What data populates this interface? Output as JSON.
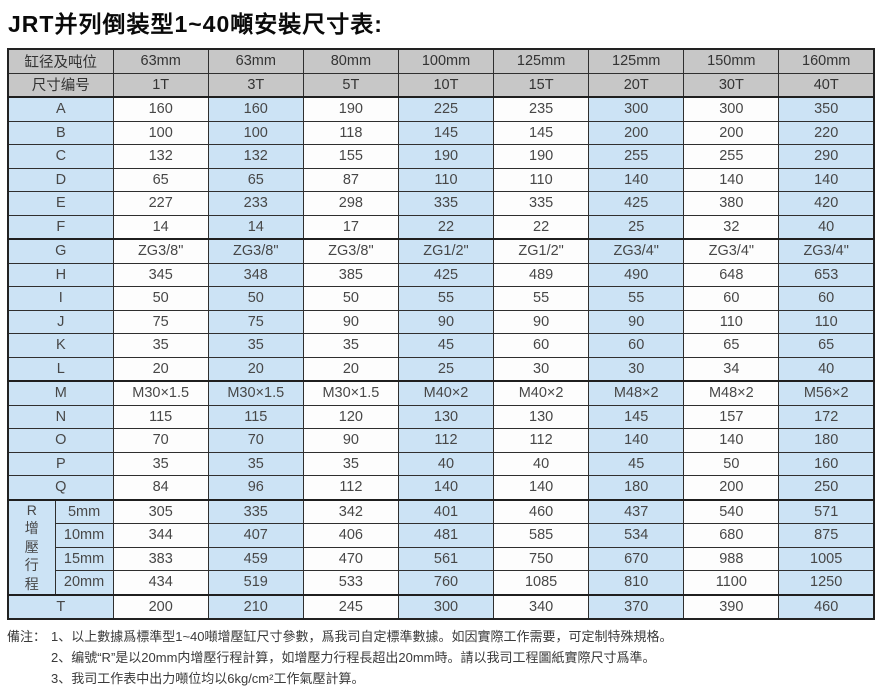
{
  "title": "JRT并列倒装型1~40噸安裝尺寸表:",
  "table": {
    "header_rows": [
      {
        "label": "缸径及吨位",
        "values": [
          "63mm",
          "63mm",
          "80mm",
          "100mm",
          "125mm",
          "125mm",
          "150mm",
          "160mm"
        ]
      },
      {
        "label": "尺寸编号",
        "values": [
          "1T",
          "3T",
          "5T",
          "10T",
          "15T",
          "20T",
          "30T",
          "40T"
        ]
      }
    ],
    "rows": [
      {
        "label": "A",
        "section_start": true,
        "values": [
          "160",
          "160",
          "190",
          "225",
          "235",
          "300",
          "300",
          "350"
        ]
      },
      {
        "label": "B",
        "values": [
          "100",
          "100",
          "118",
          "145",
          "145",
          "200",
          "200",
          "220"
        ]
      },
      {
        "label": "C",
        "values": [
          "132",
          "132",
          "155",
          "190",
          "190",
          "255",
          "255",
          "290"
        ]
      },
      {
        "label": "D",
        "values": [
          "65",
          "65",
          "87",
          "110",
          "110",
          "140",
          "140",
          "140"
        ]
      },
      {
        "label": "E",
        "values": [
          "227",
          "233",
          "298",
          "335",
          "335",
          "425",
          "380",
          "420"
        ]
      },
      {
        "label": "F",
        "values": [
          "14",
          "14",
          "17",
          "22",
          "22",
          "25",
          "32",
          "40"
        ]
      },
      {
        "label": "G",
        "section_start": true,
        "values": [
          "ZG3/8\"",
          "ZG3/8\"",
          "ZG3/8\"",
          "ZG1/2\"",
          "ZG1/2\"",
          "ZG3/4\"",
          "ZG3/4\"",
          "ZG3/4\""
        ]
      },
      {
        "label": "H",
        "values": [
          "345",
          "348",
          "385",
          "425",
          "489",
          "490",
          "648",
          "653"
        ]
      },
      {
        "label": "I",
        "values": [
          "50",
          "50",
          "50",
          "55",
          "55",
          "55",
          "60",
          "60"
        ]
      },
      {
        "label": "J",
        "values": [
          "75",
          "75",
          "90",
          "90",
          "90",
          "90",
          "110",
          "110"
        ]
      },
      {
        "label": "K",
        "values": [
          "35",
          "35",
          "35",
          "45",
          "60",
          "60",
          "65",
          "65"
        ]
      },
      {
        "label": "L",
        "values": [
          "20",
          "20",
          "20",
          "25",
          "30",
          "30",
          "34",
          "40"
        ]
      },
      {
        "label": "M",
        "section_start": true,
        "values": [
          "M30×1.5",
          "M30×1.5",
          "M30×1.5",
          "M40×2",
          "M40×2",
          "M48×2",
          "M48×2",
          "M56×2"
        ]
      },
      {
        "label": "N",
        "values": [
          "115",
          "115",
          "120",
          "130",
          "130",
          "145",
          "157",
          "172"
        ]
      },
      {
        "label": "O",
        "values": [
          "70",
          "70",
          "90",
          "112",
          "112",
          "140",
          "140",
          "180"
        ]
      },
      {
        "label": "P",
        "values": [
          "35",
          "35",
          "35",
          "40",
          "40",
          "45",
          "50",
          "160"
        ]
      },
      {
        "label": "Q",
        "values": [
          "84",
          "96",
          "112",
          "140",
          "140",
          "180",
          "200",
          "250"
        ]
      }
    ],
    "r_section": {
      "group_label": "R增壓行程",
      "rows": [
        {
          "label": "5mm",
          "values": [
            "305",
            "335",
            "342",
            "401",
            "460",
            "437",
            "540",
            "571"
          ]
        },
        {
          "label": "10mm",
          "values": [
            "344",
            "407",
            "406",
            "481",
            "585",
            "534",
            "680",
            "875"
          ]
        },
        {
          "label": "15mm",
          "values": [
            "383",
            "459",
            "470",
            "561",
            "750",
            "670",
            "988",
            "1005"
          ]
        },
        {
          "label": "20mm",
          "values": [
            "434",
            "519",
            "533",
            "760",
            "1085",
            "810",
            "1100",
            "1250"
          ]
        }
      ]
    },
    "t_row": {
      "label": "T",
      "values": [
        "200",
        "210",
        "245",
        "300",
        "340",
        "370",
        "390",
        "460"
      ]
    }
  },
  "notes": {
    "prefix": "備注：",
    "items": [
      "1、以上數據爲標準型1~40噸增壓缸尺寸參數，爲我司自定標準數據。如因實際工作需要，可定制特殊規格。",
      "2、编號“R”是以20mm内增壓行程計算，如增壓力行程長超出20mm時。請以我司工程圖紙實際尺寸爲準。",
      "3、我司工作表中出力噸位均以6kg/cm²工作氣壓計算。"
    ]
  },
  "colors": {
    "header_bg": "#c7c7c7",
    "row_blue": "#cce3f5",
    "row_white": "#fdfdfd",
    "border": "#2f2f2f",
    "title_text": "#0a0a0a"
  }
}
